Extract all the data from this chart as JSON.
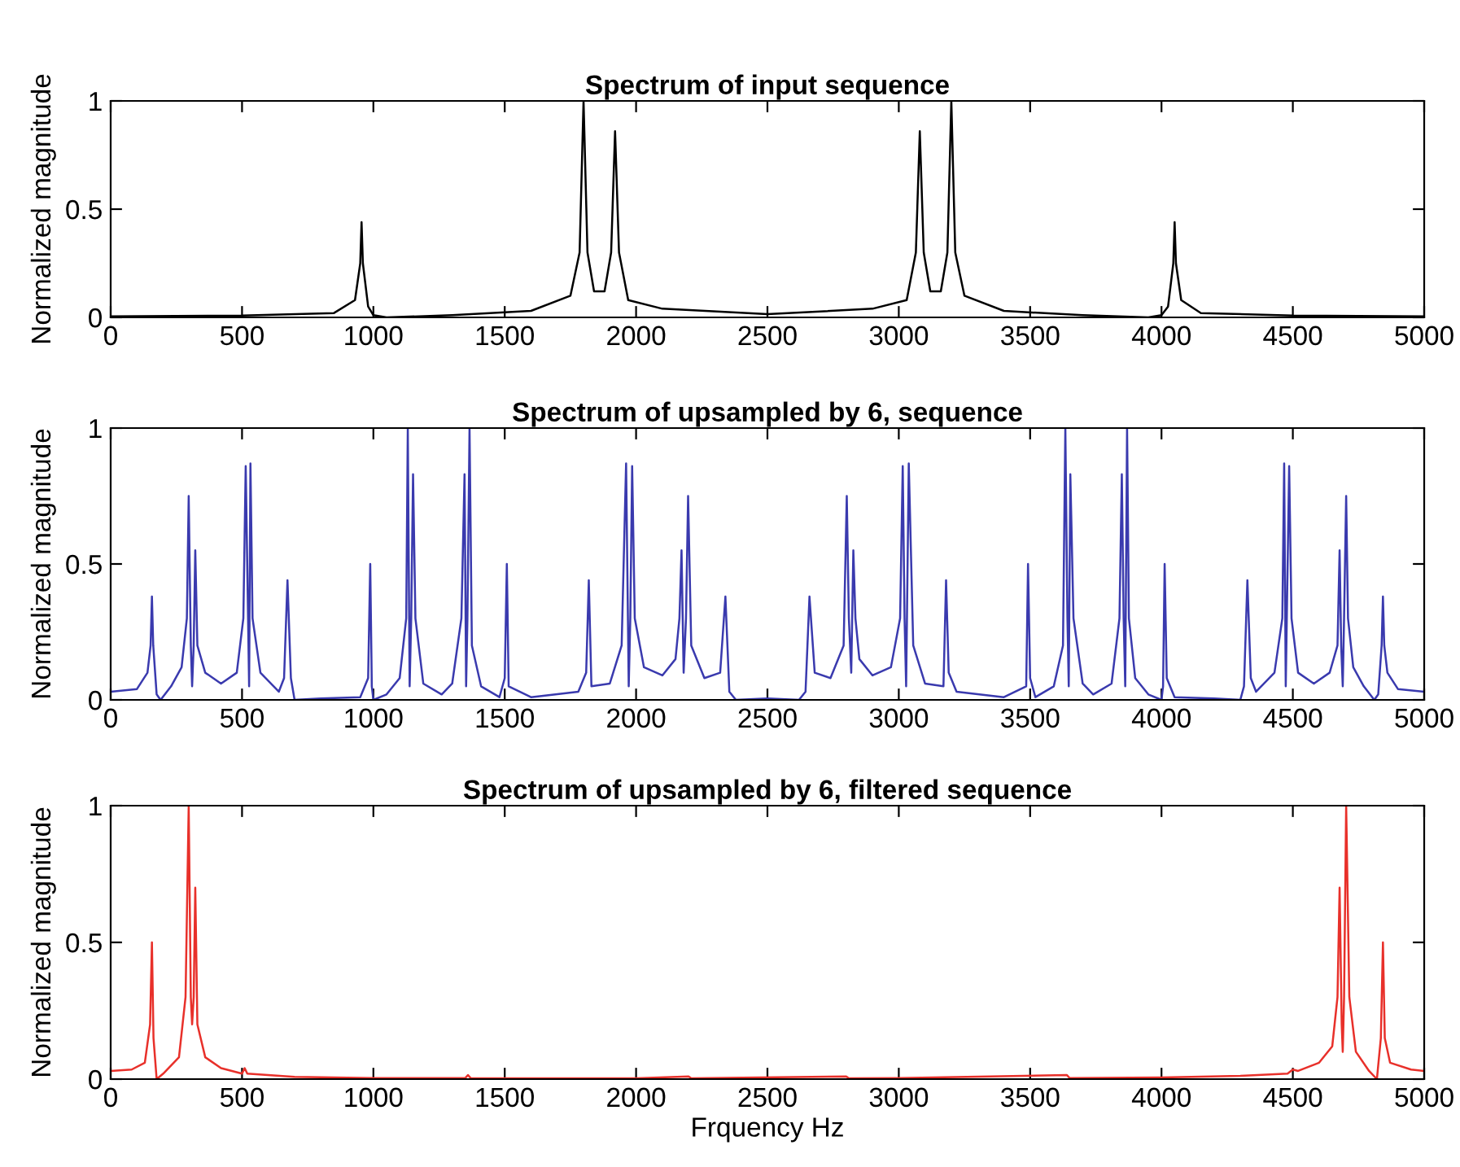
{
  "chart_data": [
    {
      "type": "line",
      "title": "Spectrum of input sequence",
      "ylabel": "Normalized magnitude",
      "xlim": [
        0,
        5000
      ],
      "ylim": [
        0,
        1
      ],
      "xticks": [
        0,
        500,
        1000,
        1500,
        2000,
        2500,
        3000,
        3500,
        4000,
        4500,
        5000
      ],
      "yticks": [
        0,
        0.5,
        1
      ],
      "grid": false,
      "legend": false,
      "series": [
        {
          "color": "#000000",
          "x": [
            0,
            500,
            850,
            930,
            950,
            955,
            960,
            980,
            1000,
            1050,
            1300,
            1600,
            1750,
            1785,
            1800,
            1815,
            1840,
            1880,
            1905,
            1920,
            1935,
            1970,
            2100,
            2500,
            2900,
            3030,
            3065,
            3080,
            3095,
            3120,
            3160,
            3185,
            3200,
            3215,
            3250,
            3400,
            3700,
            3950,
            4000,
            4025,
            4045,
            4050,
            4055,
            4075,
            4150,
            4500,
            5000
          ],
          "values": [
            0.005,
            0.008,
            0.02,
            0.08,
            0.25,
            0.44,
            0.25,
            0.05,
            0.01,
            0.0,
            0.01,
            0.03,
            0.1,
            0.3,
            1.0,
            0.3,
            0.12,
            0.12,
            0.3,
            0.86,
            0.3,
            0.08,
            0.04,
            0.015,
            0.04,
            0.08,
            0.3,
            0.86,
            0.3,
            0.12,
            0.12,
            0.3,
            1.0,
            0.3,
            0.1,
            0.03,
            0.01,
            0.0,
            0.01,
            0.05,
            0.25,
            0.44,
            0.25,
            0.08,
            0.02,
            0.008,
            0.005
          ]
        }
      ]
    },
    {
      "type": "line",
      "title": "Spectrum of upsampled by 6, sequence",
      "ylabel": "Normalized magnitude",
      "xlim": [
        0,
        5000
      ],
      "ylim": [
        0,
        1
      ],
      "xticks": [
        0,
        500,
        1000,
        1500,
        2000,
        2500,
        3000,
        3500,
        4000,
        4500,
        5000
      ],
      "yticks": [
        0,
        0.5,
        1
      ],
      "grid": false,
      "legend": false,
      "series": [
        {
          "color": "#3a3aae",
          "x": [
            0,
            100,
            140,
            152,
            157,
            162,
            175,
            190,
            230,
            270,
            290,
            297,
            305,
            310,
            316,
            322,
            330,
            360,
            420,
            480,
            505,
            514,
            523,
            527,
            532,
            540,
            570,
            640,
            660,
            673,
            686,
            700,
            800,
            950,
            980,
            988,
            994,
            1000,
            1050,
            1100,
            1125,
            1131,
            1138,
            1144,
            1151,
            1160,
            1190,
            1260,
            1300,
            1335,
            1347,
            1353,
            1358,
            1366,
            1375,
            1410,
            1480,
            1500,
            1508,
            1515,
            1600,
            1780,
            1810,
            1820,
            1830,
            1900,
            1945,
            1962,
            1972,
            1978,
            1985,
            1995,
            2030,
            2100,
            2150,
            2165,
            2173,
            2181,
            2190,
            2198,
            2210,
            2260,
            2320,
            2340,
            2355,
            2380,
            2500,
            2620,
            2645,
            2660,
            2680,
            2740,
            2790,
            2802,
            2810,
            2819,
            2827,
            2835,
            2850,
            2900,
            2970,
            3005,
            3015,
            3022,
            3028,
            3038,
            3055,
            3100,
            3170,
            3180,
            3190,
            3220,
            3400,
            3485,
            3492,
            3500,
            3520,
            3590,
            3625,
            3634,
            3642,
            3647,
            3653,
            3665,
            3700,
            3740,
            3810,
            3840,
            3849,
            3856,
            3862,
            3869,
            3876,
            3900,
            3950,
            4000,
            4006,
            4012,
            4020,
            4050,
            4200,
            4300,
            4314,
            4327,
            4340,
            4360,
            4430,
            4460,
            4467,
            4473,
            4477,
            4486,
            4495,
            4520,
            4580,
            4640,
            4670,
            4678,
            4684,
            4690,
            4695,
            4703,
            4710,
            4730,
            4770,
            4810,
            4825,
            4838,
            4843,
            4848,
            4860,
            4900,
            5000
          ],
          "values": [
            0.03,
            0.04,
            0.1,
            0.2,
            0.38,
            0.2,
            0.02,
            0.0,
            0.05,
            0.12,
            0.3,
            0.75,
            0.2,
            0.05,
            0.2,
            0.55,
            0.2,
            0.1,
            0.06,
            0.1,
            0.3,
            0.86,
            0.3,
            0.05,
            0.87,
            0.3,
            0.1,
            0.03,
            0.08,
            0.44,
            0.08,
            0.0,
            0.005,
            0.01,
            0.08,
            0.5,
            0.05,
            0.0,
            0.02,
            0.08,
            0.3,
            1.0,
            0.05,
            0.3,
            0.83,
            0.3,
            0.06,
            0.02,
            0.06,
            0.3,
            0.83,
            0.05,
            0.3,
            1.0,
            0.2,
            0.05,
            0.01,
            0.08,
            0.5,
            0.05,
            0.01,
            0.03,
            0.1,
            0.44,
            0.05,
            0.06,
            0.2,
            0.87,
            0.05,
            0.3,
            0.86,
            0.3,
            0.12,
            0.09,
            0.15,
            0.3,
            0.55,
            0.1,
            0.3,
            0.75,
            0.2,
            0.08,
            0.1,
            0.38,
            0.03,
            0.0,
            0.005,
            0.0,
            0.03,
            0.38,
            0.1,
            0.08,
            0.2,
            0.75,
            0.3,
            0.1,
            0.55,
            0.3,
            0.15,
            0.09,
            0.12,
            0.3,
            0.86,
            0.3,
            0.05,
            0.87,
            0.2,
            0.06,
            0.05,
            0.44,
            0.1,
            0.03,
            0.01,
            0.05,
            0.5,
            0.08,
            0.01,
            0.05,
            0.2,
            1.0,
            0.3,
            0.05,
            0.83,
            0.3,
            0.06,
            0.02,
            0.06,
            0.3,
            0.83,
            0.3,
            0.05,
            1.0,
            0.3,
            0.08,
            0.02,
            0.0,
            0.05,
            0.5,
            0.08,
            0.01,
            0.005,
            0.0,
            0.05,
            0.44,
            0.08,
            0.03,
            0.1,
            0.3,
            0.87,
            0.05,
            0.3,
            0.86,
            0.3,
            0.1,
            0.06,
            0.1,
            0.2,
            0.55,
            0.2,
            0.05,
            0.3,
            0.75,
            0.3,
            0.12,
            0.05,
            0.0,
            0.02,
            0.2,
            0.38,
            0.2,
            0.1,
            0.04,
            0.03
          ]
        }
      ]
    },
    {
      "type": "line",
      "title": "Spectrum of upsampled by 6, filtered sequence",
      "ylabel": "Normalized magnitude",
      "xlabel": "Frquency Hz",
      "xlim": [
        0,
        5000
      ],
      "ylim": [
        0,
        1
      ],
      "xticks": [
        0,
        500,
        1000,
        1500,
        2000,
        2500,
        3000,
        3500,
        4000,
        4500,
        5000
      ],
      "yticks": [
        0,
        0.5,
        1
      ],
      "grid": false,
      "legend": false,
      "series": [
        {
          "color": "#e8302a",
          "x": [
            0,
            80,
            130,
            150,
            157,
            163,
            175,
            200,
            260,
            285,
            297,
            305,
            310,
            316,
            322,
            330,
            360,
            420,
            500,
            510,
            520,
            700,
            1000,
            1350,
            1360,
            1370,
            2000,
            2200,
            2210,
            2800,
            2810,
            3000,
            3640,
            3650,
            4000,
            4300,
            4480,
            4500,
            4520,
            4600,
            4650,
            4670,
            4678,
            4686,
            4690,
            4695,
            4703,
            4715,
            4740,
            4790,
            4820,
            4835,
            4843,
            4850,
            4870,
            4950,
            5000
          ],
          "values": [
            0.03,
            0.035,
            0.06,
            0.2,
            0.5,
            0.15,
            0.0,
            0.02,
            0.08,
            0.3,
            1.0,
            0.3,
            0.2,
            0.3,
            0.7,
            0.2,
            0.08,
            0.04,
            0.02,
            0.04,
            0.02,
            0.008,
            0.004,
            0.004,
            0.015,
            0.004,
            0.003,
            0.01,
            0.003,
            0.01,
            0.003,
            0.004,
            0.015,
            0.004,
            0.006,
            0.012,
            0.02,
            0.035,
            0.03,
            0.06,
            0.12,
            0.3,
            0.7,
            0.2,
            0.1,
            0.3,
            1.0,
            0.3,
            0.1,
            0.03,
            0.0,
            0.15,
            0.5,
            0.15,
            0.06,
            0.035,
            0.03
          ]
        }
      ]
    }
  ]
}
